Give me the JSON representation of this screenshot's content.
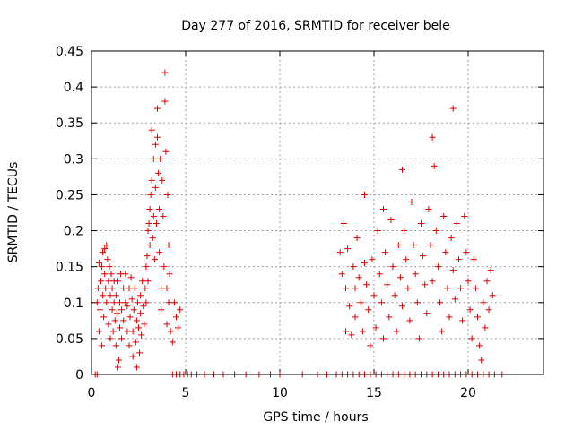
{
  "chart_data": {
    "type": "scatter",
    "title": "Day 277 of 2016, SRMTID for receiver bele",
    "xlabel": "GPS time / hours",
    "ylabel": "SRMTID / TECUs",
    "xlim": [
      0,
      24
    ],
    "ylim": [
      0,
      0.45
    ],
    "grid": true,
    "marker": "plus",
    "marker_color": "#e00000",
    "x_ticks": [
      0,
      5,
      10,
      15,
      20
    ],
    "x_tick_labels": [
      "0",
      "5",
      "10",
      "15",
      "20"
    ],
    "y_ticks": [
      0,
      0.05,
      0.1,
      0.15,
      0.2,
      0.25,
      0.3,
      0.35,
      0.4,
      0.45
    ],
    "y_tick_labels": [
      "0",
      "0.05",
      "0.1",
      "0.15",
      "0.2",
      "0.25",
      "0.3",
      "0.35",
      "0.4",
      "0.45"
    ],
    "series": [
      {
        "name": "SRMTID",
        "points": [
          [
            0.2,
            0.0
          ],
          [
            0.3,
            0.0
          ],
          [
            0.3,
            0.1
          ],
          [
            0.35,
            0.12
          ],
          [
            0.4,
            0.155
          ],
          [
            0.4,
            0.06
          ],
          [
            0.45,
            0.09
          ],
          [
            0.5,
            0.13
          ],
          [
            0.55,
            0.15
          ],
          [
            0.55,
            0.04
          ],
          [
            0.6,
            0.17
          ],
          [
            0.6,
            0.11
          ],
          [
            0.65,
            0.08
          ],
          [
            0.7,
            0.175
          ],
          [
            0.7,
            0.14
          ],
          [
            0.75,
            0.12
          ],
          [
            0.8,
            0.18
          ],
          [
            0.8,
            0.1
          ],
          [
            0.85,
            0.16
          ],
          [
            0.9,
            0.13
          ],
          [
            0.9,
            0.07
          ],
          [
            0.95,
            0.15
          ],
          [
            1.0,
            0.11
          ],
          [
            1.0,
            0.05
          ],
          [
            1.05,
            0.14
          ],
          [
            1.1,
            0.09
          ],
          [
            1.1,
            0.12
          ],
          [
            1.15,
            0.06
          ],
          [
            1.2,
            0.1
          ],
          [
            1.2,
            0.13
          ],
          [
            1.25,
            0.075
          ],
          [
            1.3,
            0.04
          ],
          [
            1.3,
            0.11
          ],
          [
            1.35,
            0.085
          ],
          [
            1.4,
            0.01
          ],
          [
            1.4,
            0.13
          ],
          [
            1.45,
            0.02
          ],
          [
            1.5,
            0.1
          ],
          [
            1.5,
            0.065
          ],
          [
            1.55,
            0.14
          ],
          [
            1.6,
            0.09
          ],
          [
            1.6,
            0.05
          ],
          [
            1.7,
            0.12
          ],
          [
            1.7,
            0.075
          ],
          [
            1.8,
            0.1
          ],
          [
            1.8,
            0.14
          ],
          [
            1.9,
            0.06
          ],
          [
            1.9,
            0.095
          ],
          [
            2.0,
            0.12
          ],
          [
            2.0,
            0.04
          ],
          [
            2.05,
            0.08
          ],
          [
            2.1,
            0.135
          ],
          [
            2.15,
            0.105
          ],
          [
            2.2,
            0.06
          ],
          [
            2.2,
            0.025
          ],
          [
            2.25,
            0.09
          ],
          [
            2.3,
            0.12
          ],
          [
            2.35,
            0.045
          ],
          [
            2.4,
            0.075
          ],
          [
            2.4,
            0.01
          ],
          [
            2.45,
            0.1
          ],
          [
            2.5,
            0.065
          ],
          [
            2.55,
            0.03
          ],
          [
            2.6,
            0.11
          ],
          [
            2.6,
            0.085
          ],
          [
            2.65,
            0.055
          ],
          [
            2.7,
            0.13
          ],
          [
            2.75,
            0.095
          ],
          [
            2.8,
            0.07
          ],
          [
            2.85,
            0.12
          ],
          [
            2.9,
            0.15
          ],
          [
            2.9,
            0.1
          ],
          [
            2.95,
            0.165
          ],
          [
            3.0,
            0.13
          ],
          [
            3.0,
            0.2
          ],
          [
            3.05,
            0.21
          ],
          [
            3.1,
            0.23
          ],
          [
            3.1,
            0.18
          ],
          [
            3.15,
            0.25
          ],
          [
            3.2,
            0.34
          ],
          [
            3.2,
            0.27
          ],
          [
            3.25,
            0.19
          ],
          [
            3.3,
            0.3
          ],
          [
            3.3,
            0.22
          ],
          [
            3.35,
            0.16
          ],
          [
            3.4,
            0.32
          ],
          [
            3.4,
            0.26
          ],
          [
            3.45,
            0.21
          ],
          [
            3.5,
            0.37
          ],
          [
            3.5,
            0.33
          ],
          [
            3.55,
            0.28
          ],
          [
            3.6,
            0.23
          ],
          [
            3.6,
            0.17
          ],
          [
            3.65,
            0.3
          ],
          [
            3.7,
            0.12
          ],
          [
            3.7,
            0.09
          ],
          [
            3.75,
            0.27
          ],
          [
            3.8,
            0.22
          ],
          [
            3.85,
            0.15
          ],
          [
            3.9,
            0.42
          ],
          [
            3.9,
            0.38
          ],
          [
            3.95,
            0.31
          ],
          [
            4.0,
            0.12
          ],
          [
            4.0,
            0.07
          ],
          [
            4.05,
            0.25
          ],
          [
            4.1,
            0.18
          ],
          [
            4.1,
            0.1
          ],
          [
            4.15,
            0.14
          ],
          [
            4.2,
            0.06
          ],
          [
            4.3,
            0.045
          ],
          [
            4.4,
            0.1
          ],
          [
            4.5,
            0.08
          ],
          [
            4.6,
            0.065
          ],
          [
            4.7,
            0.09
          ],
          [
            4.3,
            0.0
          ],
          [
            4.5,
            0.0
          ],
          [
            4.7,
            0.0
          ],
          [
            4.9,
            0.0
          ],
          [
            5.1,
            0.0
          ],
          [
            5.3,
            0.0
          ],
          [
            5.6,
            0.0
          ],
          [
            6.0,
            0.0
          ],
          [
            6.5,
            0.0
          ],
          [
            7.0,
            0.0
          ],
          [
            7.6,
            0.0
          ],
          [
            8.2,
            0.0
          ],
          [
            8.9,
            0.0
          ],
          [
            9.5,
            0.0
          ],
          [
            10.0,
            0.0
          ],
          [
            11.2,
            0.0
          ],
          [
            12.0,
            0.0
          ],
          [
            12.5,
            0.0
          ],
          [
            13.0,
            0.0
          ],
          [
            13.3,
            0.0
          ],
          [
            13.6,
            0.0
          ],
          [
            13.9,
            0.0
          ],
          [
            14.2,
            0.0
          ],
          [
            14.5,
            0.0
          ],
          [
            14.8,
            0.0
          ],
          [
            15.1,
            0.0
          ],
          [
            15.4,
            0.0
          ],
          [
            15.7,
            0.0
          ],
          [
            16.0,
            0.0
          ],
          [
            16.3,
            0.0
          ],
          [
            16.6,
            0.0
          ],
          [
            16.9,
            0.0
          ],
          [
            17.2,
            0.0
          ],
          [
            17.5,
            0.0
          ],
          [
            17.8,
            0.0
          ],
          [
            18.1,
            0.0
          ],
          [
            18.4,
            0.0
          ],
          [
            18.7,
            0.0
          ],
          [
            19.0,
            0.0
          ],
          [
            19.3,
            0.0
          ],
          [
            19.6,
            0.0
          ],
          [
            19.9,
            0.0
          ],
          [
            20.2,
            0.0
          ],
          [
            20.5,
            0.0
          ],
          [
            20.8,
            0.0
          ],
          [
            21.1,
            0.0
          ],
          [
            21.4,
            0.0
          ],
          [
            21.8,
            0.0
          ],
          [
            13.2,
            0.17
          ],
          [
            13.3,
            0.14
          ],
          [
            13.4,
            0.21
          ],
          [
            13.5,
            0.12
          ],
          [
            13.5,
            0.06
          ],
          [
            13.6,
            0.175
          ],
          [
            13.7,
            0.095
          ],
          [
            13.8,
            0.055
          ],
          [
            13.9,
            0.15
          ],
          [
            14.0,
            0.12
          ],
          [
            14.0,
            0.08
          ],
          [
            14.1,
            0.19
          ],
          [
            14.2,
            0.135
          ],
          [
            14.3,
            0.1
          ],
          [
            14.4,
            0.06
          ],
          [
            14.5,
            0.155
          ],
          [
            14.5,
            0.25
          ],
          [
            14.6,
            0.125
          ],
          [
            14.7,
            0.09
          ],
          [
            14.8,
            0.04
          ],
          [
            14.9,
            0.16
          ],
          [
            15.0,
            0.11
          ],
          [
            15.1,
            0.065
          ],
          [
            15.2,
            0.2
          ],
          [
            15.3,
            0.14
          ],
          [
            15.4,
            0.1
          ],
          [
            15.5,
            0.23
          ],
          [
            15.5,
            0.05
          ],
          [
            15.6,
            0.17
          ],
          [
            15.7,
            0.125
          ],
          [
            15.8,
            0.08
          ],
          [
            15.9,
            0.215
          ],
          [
            16.0,
            0.15
          ],
          [
            16.1,
            0.11
          ],
          [
            16.2,
            0.06
          ],
          [
            16.3,
            0.18
          ],
          [
            16.4,
            0.135
          ],
          [
            16.5,
            0.285
          ],
          [
            16.5,
            0.095
          ],
          [
            16.6,
            0.2
          ],
          [
            16.7,
            0.16
          ],
          [
            16.8,
            0.12
          ],
          [
            16.9,
            0.075
          ],
          [
            17.0,
            0.24
          ],
          [
            17.1,
            0.18
          ],
          [
            17.2,
            0.14
          ],
          [
            17.3,
            0.1
          ],
          [
            17.4,
            0.05
          ],
          [
            17.5,
            0.21
          ],
          [
            17.6,
            0.165
          ],
          [
            17.7,
            0.125
          ],
          [
            17.8,
            0.085
          ],
          [
            17.9,
            0.23
          ],
          [
            18.0,
            0.18
          ],
          [
            18.1,
            0.33
          ],
          [
            18.1,
            0.13
          ],
          [
            18.2,
            0.29
          ],
          [
            18.3,
            0.2
          ],
          [
            18.4,
            0.15
          ],
          [
            18.5,
            0.1
          ],
          [
            18.6,
            0.06
          ],
          [
            18.7,
            0.22
          ],
          [
            18.8,
            0.17
          ],
          [
            18.9,
            0.12
          ],
          [
            19.0,
            0.08
          ],
          [
            19.1,
            0.19
          ],
          [
            19.2,
            0.37
          ],
          [
            19.2,
            0.145
          ],
          [
            19.3,
            0.105
          ],
          [
            19.4,
            0.21
          ],
          [
            19.5,
            0.16
          ],
          [
            19.6,
            0.12
          ],
          [
            19.7,
            0.075
          ],
          [
            19.8,
            0.22
          ],
          [
            19.9,
            0.17
          ],
          [
            20.0,
            0.13
          ],
          [
            20.1,
            0.09
          ],
          [
            20.2,
            0.05
          ],
          [
            20.3,
            0.16
          ],
          [
            20.4,
            0.12
          ],
          [
            20.5,
            0.08
          ],
          [
            20.6,
            0.04
          ],
          [
            20.7,
            0.02
          ],
          [
            20.8,
            0.1
          ],
          [
            20.9,
            0.065
          ],
          [
            21.0,
            0.13
          ],
          [
            21.1,
            0.09
          ],
          [
            21.2,
            0.145
          ],
          [
            21.3,
            0.11
          ]
        ]
      }
    ]
  }
}
